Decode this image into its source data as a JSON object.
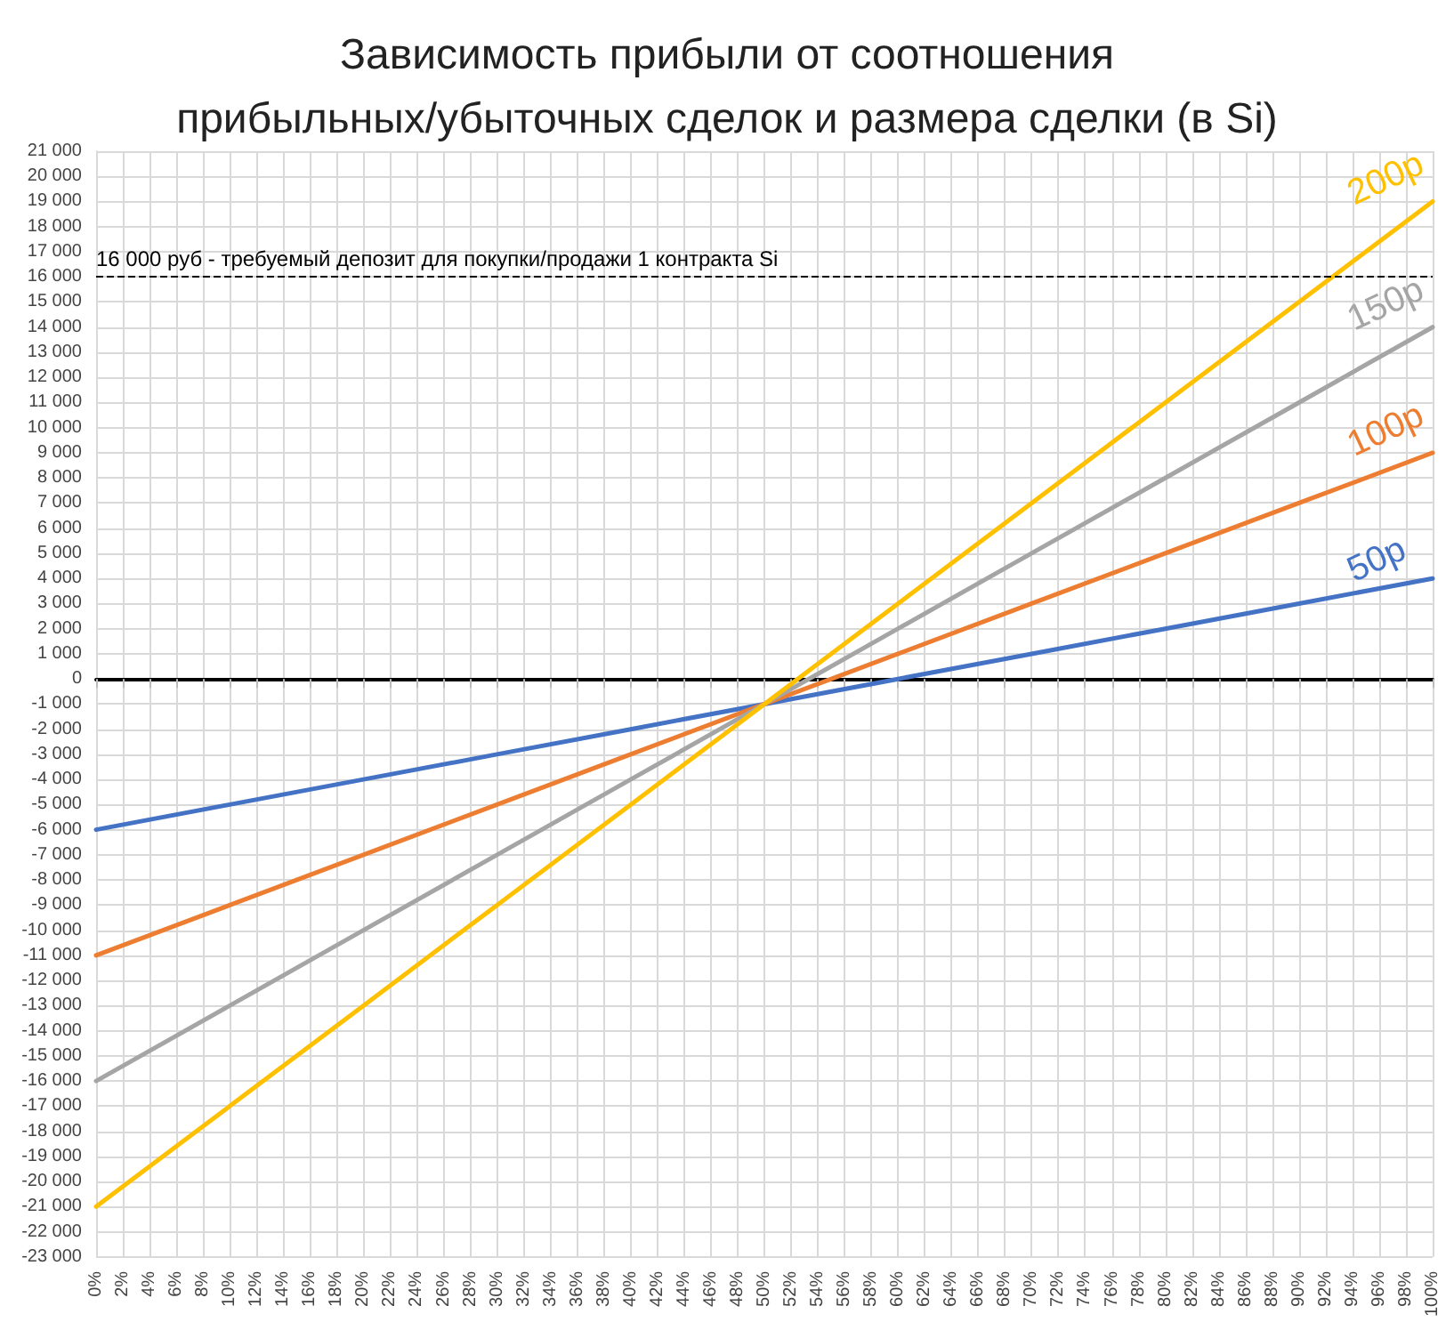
{
  "chart_data": {
    "type": "line",
    "title": "Зависимость прибыли от соотношения\nприбыльных/убыточных сделок и размера сделки (в Si)",
    "x": [
      0,
      10,
      20,
      30,
      40,
      50,
      60,
      70,
      80,
      90,
      100
    ],
    "series": [
      {
        "name": "50р",
        "color": "#4472c4",
        "values": [
          -6000,
          -5000,
          -4000,
          -3000,
          -2000,
          -1000,
          0,
          1000,
          2000,
          3000,
          4000
        ]
      },
      {
        "name": "100р",
        "color": "#ed7d31",
        "values": [
          -11000,
          -9000,
          -7000,
          -5000,
          -3000,
          -1000,
          1000,
          3000,
          5000,
          7000,
          9000
        ]
      },
      {
        "name": "150р",
        "color": "#a5a5a5",
        "values": [
          -16000,
          -13000,
          -10000,
          -7000,
          -4000,
          -1000,
          2000,
          5000,
          8000,
          11000,
          14000
        ]
      },
      {
        "name": "200р",
        "color": "#ffc000",
        "values": [
          -21000,
          -17000,
          -13000,
          -9000,
          -5000,
          -1000,
          3000,
          7000,
          11000,
          15000,
          19000
        ]
      }
    ],
    "xlim": [
      0,
      100
    ],
    "xticks": [
      {
        "value": 0,
        "label": "0%"
      },
      {
        "value": 2,
        "label": "2%"
      },
      {
        "value": 4,
        "label": "4%"
      },
      {
        "value": 6,
        "label": "6%"
      },
      {
        "value": 8,
        "label": "8%"
      },
      {
        "value": 10,
        "label": "10%"
      },
      {
        "value": 12,
        "label": "12%"
      },
      {
        "value": 14,
        "label": "14%"
      },
      {
        "value": 16,
        "label": "16%"
      },
      {
        "value": 18,
        "label": "18%"
      },
      {
        "value": 20,
        "label": "20%"
      },
      {
        "value": 22,
        "label": "22%"
      },
      {
        "value": 24,
        "label": "24%"
      },
      {
        "value": 26,
        "label": "26%"
      },
      {
        "value": 28,
        "label": "28%"
      },
      {
        "value": 30,
        "label": "30%"
      },
      {
        "value": 32,
        "label": "32%"
      },
      {
        "value": 34,
        "label": "34%"
      },
      {
        "value": 36,
        "label": "36%"
      },
      {
        "value": 38,
        "label": "38%"
      },
      {
        "value": 40,
        "label": "40%"
      },
      {
        "value": 42,
        "label": "42%"
      },
      {
        "value": 44,
        "label": "44%"
      },
      {
        "value": 46,
        "label": "46%"
      },
      {
        "value": 48,
        "label": "48%"
      },
      {
        "value": 50,
        "label": "50%"
      },
      {
        "value": 52,
        "label": "52%"
      },
      {
        "value": 54,
        "label": "54%"
      },
      {
        "value": 56,
        "label": "56%"
      },
      {
        "value": 58,
        "label": "58%"
      },
      {
        "value": 60,
        "label": "60%"
      },
      {
        "value": 62,
        "label": "62%"
      },
      {
        "value": 64,
        "label": "64%"
      },
      {
        "value": 66,
        "label": "66%"
      },
      {
        "value": 68,
        "label": "68%"
      },
      {
        "value": 70,
        "label": "70%"
      },
      {
        "value": 72,
        "label": "72%"
      },
      {
        "value": 74,
        "label": "74%"
      },
      {
        "value": 76,
        "label": "76%"
      },
      {
        "value": 78,
        "label": "78%"
      },
      {
        "value": 80,
        "label": "80%"
      },
      {
        "value": 82,
        "label": "82%"
      },
      {
        "value": 84,
        "label": "84%"
      },
      {
        "value": 86,
        "label": "86%"
      },
      {
        "value": 88,
        "label": "88%"
      },
      {
        "value": 90,
        "label": "90%"
      },
      {
        "value": 92,
        "label": "92%"
      },
      {
        "value": 94,
        "label": "94%"
      },
      {
        "value": 96,
        "label": "96%"
      },
      {
        "value": 98,
        "label": "98%"
      },
      {
        "value": 100,
        "label": "100%"
      }
    ],
    "ylim": [
      -23000,
      21000
    ],
    "yticks": [
      {
        "value": -23000,
        "label": "-23 000"
      },
      {
        "value": -22000,
        "label": "-22 000"
      },
      {
        "value": -21000,
        "label": "-21 000"
      },
      {
        "value": -20000,
        "label": "-20 000"
      },
      {
        "value": -19000,
        "label": "-19 000"
      },
      {
        "value": -18000,
        "label": "-18 000"
      },
      {
        "value": -17000,
        "label": "-17 000"
      },
      {
        "value": -16000,
        "label": "-16 000"
      },
      {
        "value": -15000,
        "label": "-15 000"
      },
      {
        "value": -14000,
        "label": "-14 000"
      },
      {
        "value": -13000,
        "label": "-13 000"
      },
      {
        "value": -12000,
        "label": "-12 000"
      },
      {
        "value": -11000,
        "label": "-11 000"
      },
      {
        "value": -10000,
        "label": "-10 000"
      },
      {
        "value": -9000,
        "label": "-9 000"
      },
      {
        "value": -8000,
        "label": "-8 000"
      },
      {
        "value": -7000,
        "label": "-7 000"
      },
      {
        "value": -6000,
        "label": "-6 000"
      },
      {
        "value": -5000,
        "label": "-5 000"
      },
      {
        "value": -4000,
        "label": "-4 000"
      },
      {
        "value": -3000,
        "label": "-3 000"
      },
      {
        "value": -2000,
        "label": "-2 000"
      },
      {
        "value": -1000,
        "label": "-1 000"
      },
      {
        "value": 0,
        "label": "0"
      },
      {
        "value": 1000,
        "label": "1 000"
      },
      {
        "value": 2000,
        "label": "2 000"
      },
      {
        "value": 3000,
        "label": "3 000"
      },
      {
        "value": 4000,
        "label": "4 000"
      },
      {
        "value": 5000,
        "label": "5 000"
      },
      {
        "value": 6000,
        "label": "6 000"
      },
      {
        "value": 7000,
        "label": "7 000"
      },
      {
        "value": 8000,
        "label": "8 000"
      },
      {
        "value": 9000,
        "label": "9 000"
      },
      {
        "value": 10000,
        "label": "10 000"
      },
      {
        "value": 11000,
        "label": "11 000"
      },
      {
        "value": 12000,
        "label": "12 000"
      },
      {
        "value": 13000,
        "label": "13 000"
      },
      {
        "value": 14000,
        "label": "14 000"
      },
      {
        "value": 15000,
        "label": "15 000"
      },
      {
        "value": 16000,
        "label": "16 000"
      },
      {
        "value": 17000,
        "label": "17 000"
      },
      {
        "value": 18000,
        "label": "18 000"
      },
      {
        "value": 19000,
        "label": "19 000"
      },
      {
        "value": 20000,
        "label": "20 000"
      },
      {
        "value": 21000,
        "label": "21 000"
      }
    ],
    "ref_lines": [
      {
        "axis": "y",
        "value": 16000,
        "label": "16 000 руб - требуемый депозит для покупки/продажи 1 контракта Si",
        "color": "#000000",
        "line_style": "dashed"
      }
    ],
    "grid": true,
    "legend": false,
    "marker": "none",
    "line_style": "solid"
  }
}
